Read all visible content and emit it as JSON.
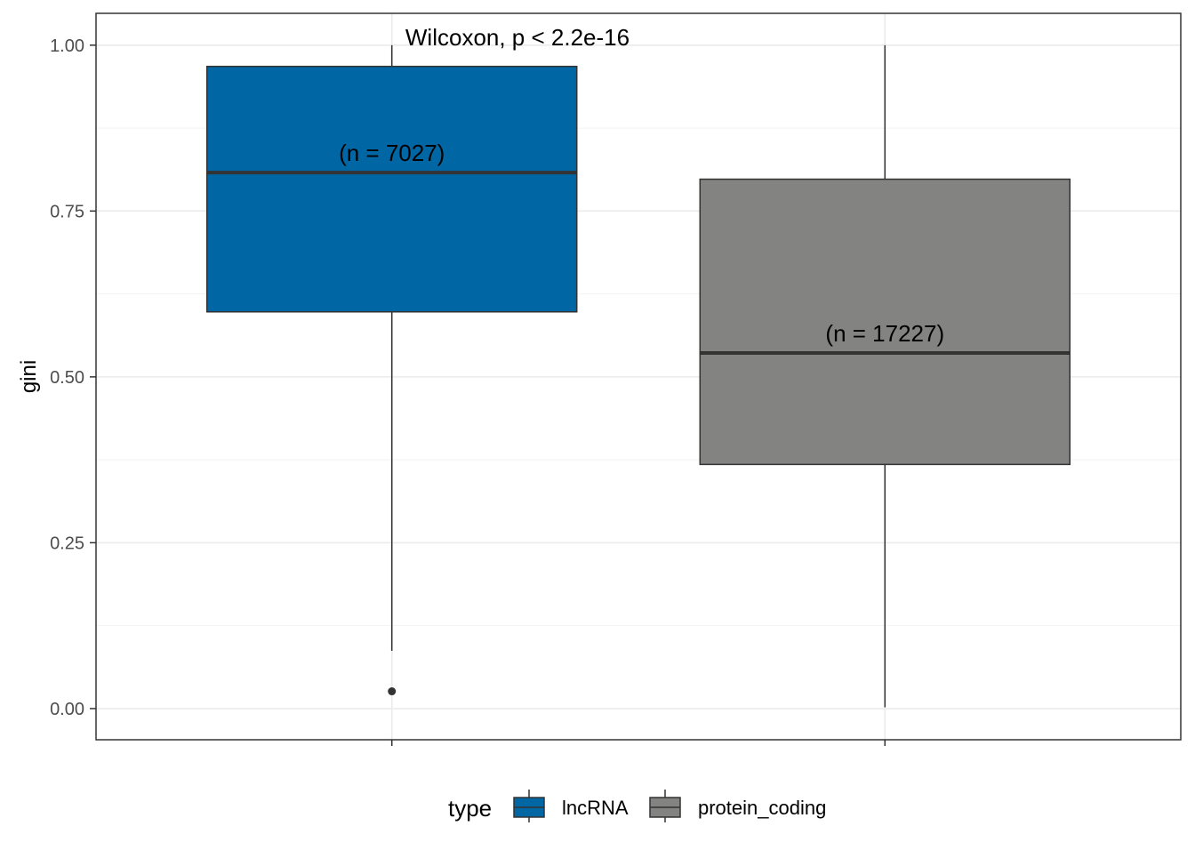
{
  "chart_data": {
    "type": "boxplot",
    "ylabel": "gini",
    "xlabel": "",
    "ylim": [
      -0.047,
      1.048
    ],
    "y_ticks": [
      "0.00",
      "0.25",
      "0.50",
      "0.75",
      "1.00"
    ],
    "y_tick_values": [
      0,
      0.25,
      0.5,
      0.75,
      1.0
    ],
    "grid": true,
    "test_label": "Wilcoxon, p < 2.2e-16",
    "categories": [
      "lncRNA",
      "protein_coding"
    ],
    "boxes": [
      {
        "name": "lncRNA",
        "color": "#0066a4",
        "whisker_low": 0.087,
        "q1": 0.598,
        "median": 0.808,
        "q3": 0.968,
        "whisker_high": 1.0,
        "outliers": [
          0.026
        ],
        "n_label": "(n = 7027)"
      },
      {
        "name": "protein_coding",
        "color": "#838381",
        "whisker_low": 0.002,
        "q1": 0.368,
        "median": 0.536,
        "q3": 0.798,
        "whisker_high": 1.0,
        "outliers": [],
        "n_label": "(n = 17227)"
      }
    ],
    "legend": {
      "title": "type",
      "position": "bottom",
      "entries": [
        "lncRNA",
        "protein_coding"
      ]
    }
  }
}
